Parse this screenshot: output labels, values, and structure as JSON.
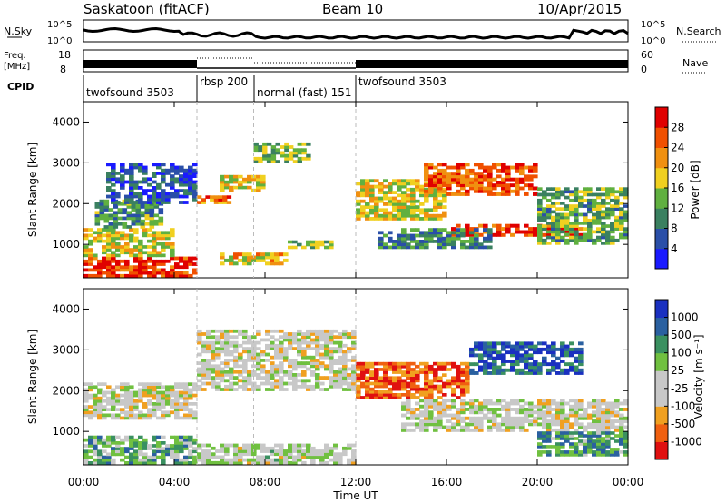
{
  "header": {
    "station": "Saskatoon (fitACF)",
    "beam": "Beam 10",
    "date": "10/Apr/2015"
  },
  "aux_panels": {
    "nsky": {
      "label": "N.Sky",
      "top_tick": "10^5",
      "bottom_tick": "10^0"
    },
    "nsearch": {
      "label": "N.Search",
      "top_tick": "10^5",
      "bottom_tick": "10^0"
    },
    "freq": {
      "label_line1": "Freq.",
      "label_line2": "[MHz]",
      "top_tick": "18",
      "bottom_tick": "8"
    },
    "nave": {
      "label": "Nave",
      "top_tick": "60",
      "bottom_tick": "0"
    },
    "cpid": {
      "label": "CPID",
      "segments": [
        {
          "name": "twofsound 3503",
          "start_h": 0,
          "end_h": 5
        },
        {
          "name": "rbsp 200",
          "start_h": 5,
          "end_h": 7.5
        },
        {
          "name": "normal (fast) 151",
          "start_h": 7.5,
          "end_h": 12
        },
        {
          "name": "twofsound 3503",
          "start_h": 12,
          "end_h": 24
        }
      ]
    }
  },
  "colorbars": {
    "power": {
      "label": "Power [dB]",
      "ticks": [
        "28",
        "24",
        "20",
        "16",
        "12",
        "8",
        "4"
      ],
      "colors": [
        "#1a1aff",
        "#2a4fa8",
        "#3a8060",
        "#60b040",
        "#f0d020",
        "#f09010",
        "#f05000",
        "#e00000"
      ]
    },
    "velocity": {
      "label": "Velocity [m s⁻¹]",
      "ticks": [
        "1000",
        "500",
        "100",
        "25",
        "-25",
        "-100",
        "-500",
        "-1000"
      ],
      "colors": [
        "#e01010",
        "#f06010",
        "#f0a020",
        "#c8c8c8",
        "#c8c8c8",
        "#70c040",
        "#3a9060",
        "#2a60a0",
        "#1a30c0"
      ]
    }
  },
  "chart_data": [
    {
      "type": "heatmap",
      "panel": "power",
      "ylabel": "Slant Range [km]",
      "ylim": [
        180,
        4500
      ],
      "yticks": [
        1000,
        2000,
        3000,
        4000
      ],
      "xlim": [
        0,
        24
      ],
      "xticks": [
        "00:00",
        "04:00",
        "08:00",
        "12:00",
        "16:00",
        "20:00",
        "00:00"
      ],
      "scale": "Power [dB]",
      "regions": [
        {
          "t0": 0,
          "t1": 5,
          "r0": 200,
          "r1": 700,
          "level": 0.9
        },
        {
          "t0": 0,
          "t1": 4,
          "r0": 700,
          "r1": 1400,
          "level": 0.55
        },
        {
          "t0": 0.5,
          "t1": 3.5,
          "r0": 1400,
          "r1": 2100,
          "level": 0.35
        },
        {
          "t0": 1,
          "t1": 5,
          "r0": 2000,
          "r1": 3000,
          "level": 0.2
        },
        {
          "t0": 5,
          "t1": 6.5,
          "r0": 2000,
          "r1": 2200,
          "level": 0.75
        },
        {
          "t0": 6,
          "t1": 8,
          "r0": 2300,
          "r1": 2700,
          "level": 0.55
        },
        {
          "t0": 7.5,
          "t1": 10,
          "r0": 3000,
          "r1": 3500,
          "level": 0.45
        },
        {
          "t0": 9,
          "t1": 11,
          "r0": 900,
          "r1": 1100,
          "level": 0.45
        },
        {
          "t0": 6,
          "t1": 9,
          "r0": 500,
          "r1": 800,
          "level": 0.6
        },
        {
          "t0": 12,
          "t1": 16,
          "r0": 1600,
          "r1": 2600,
          "level": 0.55
        },
        {
          "t0": 15,
          "t1": 20,
          "r0": 2200,
          "r1": 3000,
          "level": 0.8
        },
        {
          "t0": 16,
          "t1": 22,
          "r0": 1200,
          "r1": 1500,
          "level": 0.85
        },
        {
          "t0": 20,
          "t1": 24,
          "r0": 1000,
          "r1": 2400,
          "level": 0.4
        },
        {
          "t0": 13,
          "t1": 18,
          "r0": 900,
          "r1": 1400,
          "level": 0.3
        }
      ]
    },
    {
      "type": "heatmap",
      "panel": "velocity",
      "ylabel": "Slant Range [km]",
      "xlabel": "Time UT",
      "ylim": [
        180,
        4500
      ],
      "yticks": [
        1000,
        2000,
        3000,
        4000
      ],
      "xlim": [
        0,
        24
      ],
      "xticks": [
        "00:00",
        "04:00",
        "08:00",
        "12:00",
        "16:00",
        "20:00",
        "00:00"
      ],
      "scale": "Velocity [m s⁻¹]",
      "regions": [
        {
          "t0": 0,
          "t1": 5,
          "r0": 200,
          "r1": 900,
          "level": 0.65
        },
        {
          "t0": 0,
          "t1": 5,
          "r0": 1300,
          "r1": 2200,
          "level": 0.45
        },
        {
          "t0": 5,
          "t1": 12,
          "r0": 2000,
          "r1": 3500,
          "level": 0.45
        },
        {
          "t0": 12,
          "t1": 17,
          "r0": 1800,
          "r1": 2700,
          "level": 0.15
        },
        {
          "t0": 17,
          "t1": 22,
          "r0": 2400,
          "r1": 3200,
          "level": 0.85
        },
        {
          "t0": 14,
          "t1": 24,
          "r0": 1000,
          "r1": 1800,
          "level": 0.45
        },
        {
          "t0": 20,
          "t1": 24,
          "r0": 400,
          "r1": 1000,
          "level": 0.7
        },
        {
          "t0": 5,
          "t1": 12,
          "r0": 200,
          "r1": 700,
          "level": 0.5
        }
      ]
    }
  ]
}
